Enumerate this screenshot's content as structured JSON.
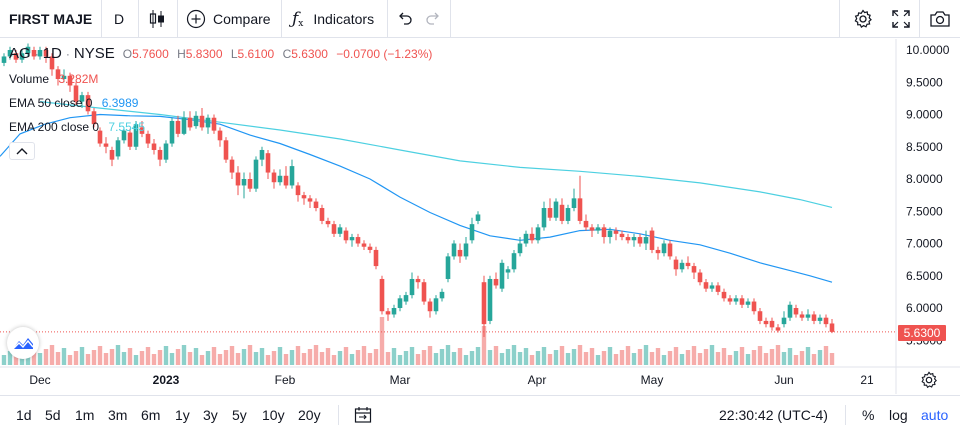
{
  "toolbar": {
    "symbol_search": "FIRST MAJE",
    "interval": "D",
    "compare_label": "Compare",
    "indicators_label": "Indicators"
  },
  "legend": {
    "symbol": "AG",
    "interval": "1D",
    "exchange": "NYSE",
    "o_label": "O",
    "o_value": "5.7600",
    "h_label": "H",
    "h_value": "5.8300",
    "l_label": "L",
    "l_value": "5.6100",
    "c_label": "C",
    "c_value": "5.6300",
    "change": "−0.0700 (−1.23%)",
    "volume_label": "Volume",
    "volume_value": "3.282M",
    "ema50_label": "EMA 50 close 0",
    "ema50_value": "6.3989",
    "ema200_label": "EMA 200 close 0",
    "ema200_value": "7.5545"
  },
  "price_axis": {
    "ticks": [
      "10.0000",
      "9.5000",
      "9.0000",
      "8.5000",
      "8.0000",
      "7.5000",
      "7.0000",
      "6.5000",
      "6.0000",
      "5.5000"
    ],
    "last_price": "5.6300"
  },
  "time_axis": {
    "ticks": [
      {
        "label": "Dec",
        "bold": false
      },
      {
        "label": "2023",
        "bold": true
      },
      {
        "label": "Feb",
        "bold": false
      },
      {
        "label": "Mar",
        "bold": false
      },
      {
        "label": "Apr",
        "bold": false
      },
      {
        "label": "May",
        "bold": false
      },
      {
        "label": "Jun",
        "bold": false
      },
      {
        "label": "21",
        "bold": false
      }
    ]
  },
  "bottombar": {
    "ranges": [
      "1d",
      "5d",
      "1m",
      "3m",
      "6m",
      "1y",
      "3y",
      "5y",
      "10y",
      "20y"
    ],
    "time": "22:30:42 (UTC-4)",
    "percent": "%",
    "log": "log",
    "auto": "auto"
  },
  "colors": {
    "up": "#26a69a",
    "down": "#ef5350",
    "ema50": "#2196f3",
    "ema200": "#4dd0e1",
    "accent": "#2962ff"
  },
  "chart_data": {
    "type": "candlestick",
    "y_range": [
      5.3,
      10.2
    ],
    "ema50_path": [
      [
        0,
        8.35
      ],
      [
        20,
        8.7
      ],
      [
        45,
        8.85
      ],
      [
        70,
        8.95
      ],
      [
        100,
        9.0
      ],
      [
        130,
        8.98
      ],
      [
        160,
        8.97
      ],
      [
        190,
        8.92
      ],
      [
        220,
        8.85
      ],
      [
        250,
        8.68
      ],
      [
        280,
        8.55
      ],
      [
        310,
        8.38
      ],
      [
        340,
        8.2
      ],
      [
        370,
        8.0
      ],
      [
        400,
        7.72
      ],
      [
        430,
        7.48
      ],
      [
        460,
        7.28
      ],
      [
        490,
        7.12
      ],
      [
        520,
        7.05
      ],
      [
        550,
        7.1
      ],
      [
        580,
        7.2
      ],
      [
        610,
        7.22
      ],
      [
        640,
        7.15
      ],
      [
        670,
        7.05
      ],
      [
        700,
        6.98
      ],
      [
        730,
        6.85
      ],
      [
        760,
        6.7
      ],
      [
        790,
        6.58
      ],
      [
        810,
        6.5
      ],
      [
        832,
        6.4
      ]
    ],
    "ema200_path": [
      [
        40,
        9.2
      ],
      [
        100,
        9.1
      ],
      [
        160,
        9.0
      ],
      [
        220,
        8.88
      ],
      [
        280,
        8.76
      ],
      [
        340,
        8.62
      ],
      [
        400,
        8.45
      ],
      [
        460,
        8.28
      ],
      [
        520,
        8.18
      ],
      [
        580,
        8.12
      ],
      [
        640,
        8.04
      ],
      [
        700,
        7.94
      ],
      [
        760,
        7.8
      ],
      [
        800,
        7.68
      ],
      [
        832,
        7.56
      ]
    ],
    "candles": [
      [
        100,
        8.75,
        8.55,
        8.8,
        8.5
      ],
      [
        106,
        8.55,
        8.5,
        8.65,
        8.4
      ],
      [
        112,
        8.45,
        8.3,
        8.5,
        8.2
      ],
      [
        118,
        8.35,
        8.6,
        8.65,
        8.3
      ],
      [
        124,
        8.6,
        8.75,
        8.8,
        8.55
      ],
      [
        130,
        8.72,
        8.5,
        8.78,
        8.45
      ],
      [
        136,
        8.5,
        8.85,
        8.9,
        8.45
      ],
      [
        142,
        8.8,
        8.7,
        8.9,
        8.65
      ],
      [
        148,
        8.7,
        8.55,
        8.75,
        8.48
      ],
      [
        154,
        8.55,
        8.45,
        8.62,
        8.38
      ],
      [
        160,
        8.45,
        8.3,
        8.5,
        8.2
      ],
      [
        166,
        8.3,
        8.55,
        8.6,
        8.25
      ],
      [
        172,
        8.55,
        8.9,
        8.95,
        8.5
      ],
      [
        178,
        8.9,
        8.7,
        8.98,
        8.65
      ],
      [
        184,
        8.7,
        8.95,
        9.05,
        8.68
      ],
      [
        190,
        8.95,
        8.8,
        9.05,
        8.75
      ],
      [
        196,
        8.82,
        8.98,
        9.05,
        8.78
      ],
      [
        202,
        8.98,
        8.8,
        9.1,
        8.75
      ],
      [
        208,
        8.8,
        8.95,
        9.0,
        8.7
      ],
      [
        214,
        8.95,
        8.75,
        9.0,
        8.7
      ],
      [
        220,
        8.75,
        8.6,
        8.8,
        8.5
      ],
      [
        226,
        8.6,
        8.3,
        8.65,
        8.25
      ],
      [
        232,
        8.3,
        8.1,
        8.35,
        8.0
      ],
      [
        238,
        8.1,
        7.9,
        8.2,
        7.75
      ],
      [
        244,
        7.9,
        8.0,
        8.1,
        7.7
      ],
      [
        250,
        8.0,
        7.85,
        8.1,
        7.8
      ],
      [
        256,
        7.85,
        8.3,
        8.35,
        7.8
      ],
      [
        262,
        8.3,
        8.45,
        8.5,
        8.2
      ],
      [
        268,
        8.4,
        8.1,
        8.45,
        8.0
      ],
      [
        274,
        8.1,
        7.95,
        8.15,
        7.85
      ],
      [
        280,
        7.95,
        8.05,
        8.15,
        7.9
      ],
      [
        286,
        8.05,
        7.9,
        8.2,
        7.85
      ],
      [
        292,
        7.9,
        8.2,
        8.3,
        7.85
      ],
      [
        298,
        7.9,
        7.75,
        7.95,
        7.65
      ],
      [
        304,
        7.75,
        7.7,
        7.8,
        7.6
      ],
      [
        310,
        7.7,
        7.65,
        7.75,
        7.55
      ],
      [
        316,
        7.65,
        7.55,
        7.7,
        7.5
      ],
      [
        322,
        7.55,
        7.35,
        7.6,
        7.3
      ],
      [
        328,
        7.35,
        7.3,
        7.4,
        7.25
      ],
      [
        334,
        7.3,
        7.15,
        7.35,
        7.1
      ],
      [
        340,
        7.15,
        7.25,
        7.3,
        7.1
      ],
      [
        346,
        7.2,
        7.05,
        7.25,
        7.0
      ],
      [
        352,
        7.05,
        7.1,
        7.15,
        6.95
      ],
      [
        358,
        7.1,
        7.0,
        7.15,
        6.95
      ],
      [
        364,
        7.0,
        6.95,
        7.05,
        6.9
      ],
      [
        370,
        6.95,
        6.9,
        7.0,
        6.85
      ],
      [
        376,
        6.9,
        6.65,
        6.95,
        6.6
      ],
      [
        382,
        6.45,
        5.95,
        6.5,
        5.9
      ],
      [
        388,
        5.95,
        5.9,
        6.0,
        5.8
      ],
      [
        394,
        5.9,
        6.0,
        6.05,
        5.85
      ],
      [
        400,
        6.0,
        6.15,
        6.2,
        5.95
      ],
      [
        406,
        6.1,
        6.2,
        6.25,
        6.05
      ],
      [
        412,
        6.2,
        6.45,
        6.55,
        6.15
      ],
      [
        418,
        6.45,
        6.4,
        6.5,
        6.3
      ],
      [
        424,
        6.4,
        6.1,
        6.45,
        6.05
      ],
      [
        430,
        6.1,
        5.95,
        6.15,
        5.85
      ],
      [
        436,
        5.95,
        6.15,
        6.2,
        5.9
      ],
      [
        442,
        6.15,
        6.25,
        6.3,
        6.1
      ],
      [
        448,
        6.45,
        6.8,
        6.85,
        6.4
      ],
      [
        454,
        6.8,
        7.0,
        7.05,
        6.75
      ],
      [
        460,
        6.9,
        6.8,
        7.0,
        6.7
      ],
      [
        466,
        6.8,
        7.0,
        7.1,
        6.75
      ],
      [
        472,
        7.05,
        7.3,
        7.4,
        7.0
      ],
      [
        478,
        7.35,
        7.45,
        7.5,
        7.3
      ],
      [
        484,
        6.4,
        5.75,
        6.5,
        5.55
      ],
      [
        490,
        5.8,
        6.45,
        6.5,
        5.75
      ],
      [
        496,
        6.45,
        6.35,
        6.55,
        6.3
      ],
      [
        502,
        6.3,
        6.7,
        6.75,
        6.25
      ],
      [
        508,
        6.55,
        6.6,
        6.65,
        6.45
      ],
      [
        514,
        6.6,
        6.85,
        6.9,
        6.55
      ],
      [
        520,
        6.85,
        7.0,
        7.1,
        6.8
      ],
      [
        526,
        7.0,
        7.15,
        7.2,
        6.95
      ],
      [
        532,
        7.15,
        7.05,
        7.25,
        7.0
      ],
      [
        538,
        7.05,
        7.25,
        7.3,
        7.0
      ],
      [
        544,
        7.25,
        7.55,
        7.65,
        7.2
      ],
      [
        550,
        7.55,
        7.4,
        7.7,
        7.35
      ],
      [
        556,
        7.4,
        7.65,
        7.7,
        7.35
      ],
      [
        562,
        7.6,
        7.35,
        7.7,
        7.3
      ],
      [
        568,
        7.35,
        7.55,
        7.6,
        7.3
      ],
      [
        574,
        7.55,
        7.7,
        7.85,
        7.5
      ],
      [
        580,
        7.7,
        7.35,
        8.05,
        7.3
      ],
      [
        586,
        7.35,
        7.25,
        7.45,
        7.2
      ],
      [
        592,
        7.25,
        7.2,
        7.3,
        7.1
      ],
      [
        598,
        7.2,
        7.25,
        7.3,
        7.15
      ],
      [
        604,
        7.25,
        7.1,
        7.3,
        7.0
      ],
      [
        610,
        7.1,
        7.2,
        7.25,
        7.0
      ],
      [
        616,
        7.2,
        7.15,
        7.25,
        7.05
      ],
      [
        622,
        7.15,
        7.1,
        7.2,
        7.05
      ],
      [
        628,
        7.1,
        7.05,
        7.15,
        7.0
      ],
      [
        634,
        7.05,
        7.1,
        7.15,
        6.95
      ],
      [
        640,
        7.1,
        7.0,
        7.15,
        6.95
      ],
      [
        646,
        7.0,
        7.1,
        7.2,
        6.9
      ],
      [
        652,
        7.2,
        6.9,
        7.25,
        6.85
      ],
      [
        658,
        6.9,
        6.85,
        6.95,
        6.75
      ],
      [
        664,
        6.85,
        7.0,
        7.05,
        6.8
      ],
      [
        670,
        7.0,
        6.8,
        7.05,
        6.75
      ],
      [
        676,
        6.75,
        6.6,
        6.8,
        6.5
      ],
      [
        682,
        6.6,
        6.7,
        6.75,
        6.55
      ],
      [
        688,
        6.7,
        6.65,
        6.8,
        6.6
      ],
      [
        694,
        6.65,
        6.55,
        6.7,
        6.45
      ],
      [
        700,
        6.55,
        6.4,
        6.6,
        6.35
      ],
      [
        706,
        6.4,
        6.3,
        6.45,
        6.25
      ],
      [
        712,
        6.3,
        6.35,
        6.4,
        6.25
      ],
      [
        718,
        6.35,
        6.25,
        6.4,
        6.2
      ],
      [
        724,
        6.25,
        6.15,
        6.3,
        6.1
      ],
      [
        730,
        6.15,
        6.1,
        6.2,
        6.05
      ],
      [
        736,
        6.1,
        6.15,
        6.2,
        6.05
      ],
      [
        742,
        6.15,
        6.05,
        6.2,
        6.0
      ],
      [
        748,
        6.05,
        6.1,
        6.15,
        6.0
      ],
      [
        754,
        6.1,
        5.95,
        6.15,
        5.9
      ],
      [
        760,
        5.95,
        5.8,
        6.0,
        5.75
      ],
      [
        766,
        5.8,
        5.75,
        5.85,
        5.7
      ],
      [
        772,
        5.8,
        5.7,
        5.85,
        5.65
      ],
      [
        778,
        5.7,
        5.65,
        5.75,
        5.62
      ],
      [
        784,
        5.75,
        5.85,
        5.95,
        5.7
      ],
      [
        790,
        5.85,
        6.05,
        6.1,
        5.8
      ],
      [
        796,
        6.0,
        5.9,
        6.05,
        5.85
      ],
      [
        802,
        5.9,
        5.85,
        5.95,
        5.8
      ],
      [
        808,
        5.85,
        5.9,
        5.98,
        5.8
      ],
      [
        814,
        5.9,
        5.8,
        5.95,
        5.75
      ],
      [
        820,
        5.8,
        5.85,
        5.9,
        5.75
      ],
      [
        826,
        5.85,
        5.75,
        5.9,
        5.7
      ],
      [
        832,
        5.76,
        5.63,
        5.83,
        5.61
      ]
    ],
    "early_candles": [
      [
        4,
        9.8,
        9.9,
        9.95,
        9.75
      ],
      [
        10,
        9.9,
        10.0,
        10.05,
        9.85
      ],
      [
        16,
        9.95,
        9.85,
        10.0,
        9.8
      ],
      [
        22,
        9.85,
        9.95,
        10.0,
        9.8
      ],
      [
        28,
        9.95,
        10.05,
        10.1,
        9.9
      ],
      [
        34,
        10.0,
        9.9,
        10.05,
        9.85
      ],
      [
        40,
        9.9,
        10.0,
        10.05,
        9.85
      ],
      [
        46,
        10.0,
        9.9,
        10.05,
        9.8
      ],
      [
        52,
        9.9,
        9.7,
        9.95,
        9.6
      ],
      [
        58,
        9.7,
        9.55,
        9.75,
        9.45
      ],
      [
        64,
        9.55,
        9.6,
        9.7,
        9.5
      ],
      [
        70,
        9.6,
        9.45,
        9.65,
        9.35
      ],
      [
        76,
        9.45,
        9.2,
        9.5,
        9.15
      ],
      [
        82,
        9.2,
        9.3,
        9.35,
        9.1
      ],
      [
        88,
        9.3,
        9.05,
        9.35,
        9.0
      ],
      [
        94,
        9.05,
        8.85,
        9.1,
        8.8
      ]
    ]
  }
}
